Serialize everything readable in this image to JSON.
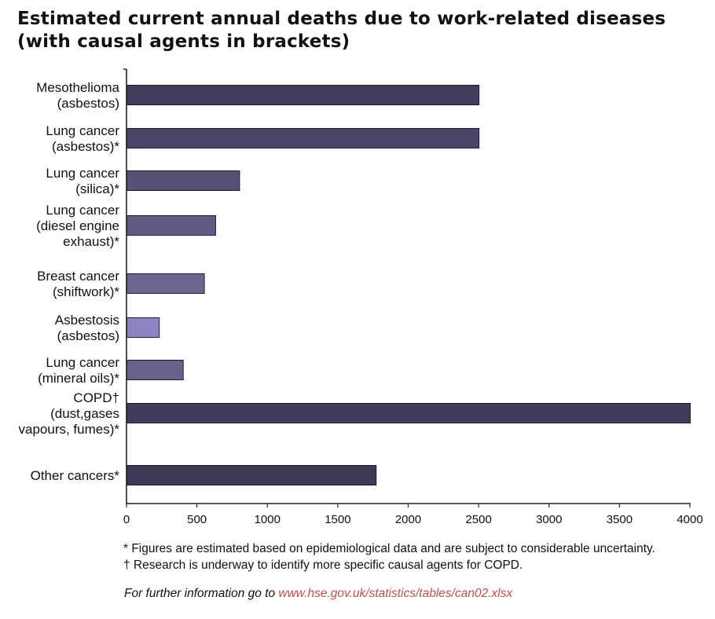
{
  "header": {
    "title_line1": "Estimated current annual deaths due to work-related diseases",
    "title_line2": "(with causal agents in brackets)"
  },
  "chart_data": {
    "type": "bar",
    "orientation": "horizontal",
    "categories": [
      [
        "Mesothelioma",
        "(asbestos)"
      ],
      [
        "Lung cancer",
        "(asbestos)*"
      ],
      [
        "Lung cancer",
        "(silica)*"
      ],
      [
        "Lung cancer",
        "(diesel engine",
        "exhaust)*"
      ],
      [
        "Breast cancer",
        "(shiftwork)*"
      ],
      [
        "Asbestosis",
        "(asbestos)"
      ],
      [
        "Lung cancer",
        "(mineral oils)*"
      ],
      [
        "COPD†",
        "(dust,gases",
        "vapours, fumes)*"
      ],
      [
        "Other cancers*"
      ]
    ],
    "values": [
      2500,
      2500,
      800,
      630,
      550,
      230,
      400,
      4000,
      1770
    ],
    "bar_colors": [
      "#413d5c",
      "#4a4566",
      "#575175",
      "#615a82",
      "#6d6690",
      "#8c84c0",
      "#68618a",
      "#403c5a",
      "#3d3a56"
    ],
    "xlim": [
      0,
      4000
    ],
    "xticks": [
      0,
      500,
      1000,
      1500,
      2000,
      2500,
      3000,
      3500,
      4000
    ],
    "grid": false,
    "legend": "none"
  },
  "footnotes": {
    "note1": "*  Figures are estimated based on epidemiological data and are subject to considerable uncertainty.",
    "note2": "† Research is underway to identify more specific causal agents for COPD."
  },
  "more_info": {
    "prefix": "For further information go to ",
    "link": "www.hse.gov.uk/statistics/tables/can02.xlsx"
  }
}
